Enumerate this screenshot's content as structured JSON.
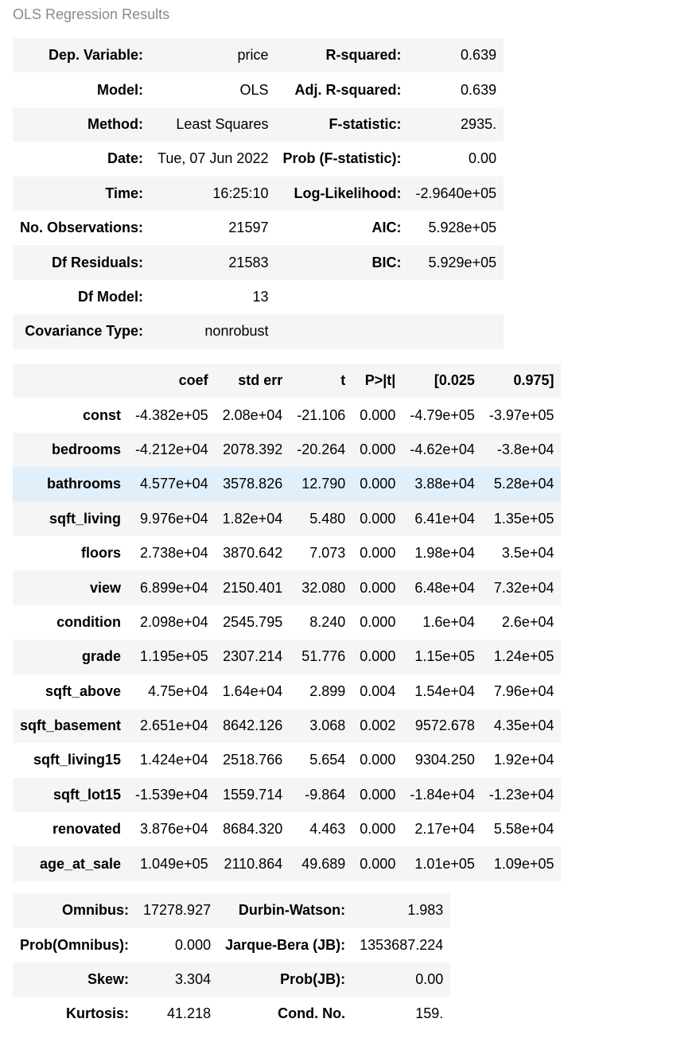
{
  "caption": "OLS Regression Results",
  "summary_rows": [
    {
      "l1": "Dep. Variable:",
      "v1": "price",
      "l2": "R-squared:",
      "v2": "0.639"
    },
    {
      "l1": "Model:",
      "v1": "OLS",
      "l2": "Adj. R-squared:",
      "v2": "0.639"
    },
    {
      "l1": "Method:",
      "v1": "Least Squares",
      "l2": "F-statistic:",
      "v2": "2935."
    },
    {
      "l1": "Date:",
      "v1": "Tue, 07 Jun 2022",
      "l2": "Prob (F-statistic):",
      "v2": "0.00"
    },
    {
      "l1": "Time:",
      "v1": "16:25:10",
      "l2": "Log-Likelihood:",
      "v2": "-2.9640e+05"
    },
    {
      "l1": "No. Observations:",
      "v1": "21597",
      "l2": "AIC:",
      "v2": "5.928e+05"
    },
    {
      "l1": "Df Residuals:",
      "v1": "21583",
      "l2": "BIC:",
      "v2": "5.929e+05"
    },
    {
      "l1": "Df Model:",
      "v1": "13",
      "l2": "",
      "v2": ""
    },
    {
      "l1": "Covariance Type:",
      "v1": "nonrobust",
      "l2": "",
      "v2": ""
    }
  ],
  "coef_headers": [
    "",
    "coef",
    "std err",
    "t",
    "P>|t|",
    "[0.025",
    "0.975]"
  ],
  "coef_rows": [
    [
      "const",
      "-4.382e+05",
      "2.08e+04",
      "-21.106",
      "0.000",
      "-4.79e+05",
      "-3.97e+05"
    ],
    [
      "bedrooms",
      "-4.212e+04",
      "2078.392",
      "-20.264",
      "0.000",
      "-4.62e+04",
      "-3.8e+04"
    ],
    [
      "bathrooms",
      "4.577e+04",
      "3578.826",
      "12.790",
      "0.000",
      "3.88e+04",
      "5.28e+04"
    ],
    [
      "sqft_living",
      "9.976e+04",
      "1.82e+04",
      "5.480",
      "0.000",
      "6.41e+04",
      "1.35e+05"
    ],
    [
      "floors",
      "2.738e+04",
      "3870.642",
      "7.073",
      "0.000",
      "1.98e+04",
      "3.5e+04"
    ],
    [
      "view",
      "6.899e+04",
      "2150.401",
      "32.080",
      "0.000",
      "6.48e+04",
      "7.32e+04"
    ],
    [
      "condition",
      "2.098e+04",
      "2545.795",
      "8.240",
      "0.000",
      "1.6e+04",
      "2.6e+04"
    ],
    [
      "grade",
      "1.195e+05",
      "2307.214",
      "51.776",
      "0.000",
      "1.15e+05",
      "1.24e+05"
    ],
    [
      "sqft_above",
      "4.75e+04",
      "1.64e+04",
      "2.899",
      "0.004",
      "1.54e+04",
      "7.96e+04"
    ],
    [
      "sqft_basement",
      "2.651e+04",
      "8642.126",
      "3.068",
      "0.002",
      "9572.678",
      "4.35e+04"
    ],
    [
      "sqft_living15",
      "1.424e+04",
      "2518.766",
      "5.654",
      "0.000",
      "9304.250",
      "1.92e+04"
    ],
    [
      "sqft_lot15",
      "-1.539e+04",
      "1559.714",
      "-9.864",
      "0.000",
      "-1.84e+04",
      "-1.23e+04"
    ],
    [
      "renovated",
      "3.876e+04",
      "8684.320",
      "4.463",
      "0.000",
      "2.17e+04",
      "5.58e+04"
    ],
    [
      "age_at_sale",
      "1.049e+05",
      "2110.864",
      "49.689",
      "0.000",
      "1.01e+05",
      "1.09e+05"
    ]
  ],
  "highlighted_row": "bathrooms",
  "highlight_color": "#e1effa",
  "diag_rows": [
    {
      "l1": "Omnibus:",
      "v1": "17278.927",
      "l2": "Durbin-Watson:",
      "v2": "1.983"
    },
    {
      "l1": "Prob(Omnibus):",
      "v1": "0.000",
      "l2": "Jarque-Bera (JB):",
      "v2": "1353687.224"
    },
    {
      "l1": "Skew:",
      "v1": "3.304",
      "l2": "Prob(JB):",
      "v2": "0.00"
    },
    {
      "l1": "Kurtosis:",
      "v1": "41.218",
      "l2": "Cond. No.",
      "v2": "159."
    }
  ]
}
